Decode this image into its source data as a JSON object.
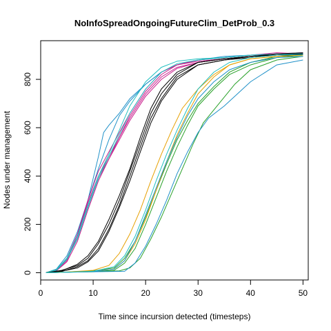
{
  "chart_data": {
    "type": "line",
    "title": "NoInfoSpreadOngoingFutureClim_DetProb_0.3",
    "xlabel": "Time since incursion detected (timesteps)",
    "ylabel": "Nodes under management",
    "xlim": [
      0,
      51
    ],
    "ylim": [
      -30,
      960
    ],
    "xticks": [
      0,
      10,
      20,
      30,
      40,
      50
    ],
    "yticks": [
      0,
      200,
      400,
      600,
      800
    ],
    "grid": false,
    "legend": "none",
    "series": [
      {
        "color": "#1E90C8",
        "x": [
          1,
          3,
          5,
          7,
          9,
          11,
          12,
          13,
          15,
          17,
          20,
          23,
          26,
          30,
          35,
          40,
          45,
          50
        ],
        "y": [
          0,
          10,
          60,
          150,
          300,
          480,
          580,
          610,
          660,
          720,
          780,
          830,
          860,
          880,
          895,
          900,
          905,
          910
        ]
      },
      {
        "color": "#1E90C8",
        "x": [
          1,
          3,
          5,
          7,
          9,
          11,
          13,
          15,
          17,
          20,
          23,
          26,
          30,
          35,
          40,
          45,
          50
        ],
        "y": [
          0,
          15,
          70,
          170,
          300,
          430,
          550,
          650,
          710,
          780,
          830,
          860,
          880,
          890,
          900,
          905,
          905
        ]
      },
      {
        "color": "#C81E8C",
        "x": [
          1,
          3,
          5,
          7,
          9,
          11,
          13,
          15,
          17,
          20,
          23,
          26,
          30,
          35,
          40,
          45,
          50
        ],
        "y": [
          0,
          10,
          50,
          150,
          290,
          400,
          480,
          560,
          640,
          740,
          810,
          850,
          870,
          885,
          895,
          900,
          900
        ]
      },
      {
        "color": "#C81E8C",
        "x": [
          1,
          3,
          5,
          7,
          9,
          11,
          13,
          15,
          17,
          20,
          23,
          26,
          30,
          35,
          40,
          45,
          50
        ],
        "y": [
          0,
          12,
          55,
          140,
          270,
          390,
          470,
          550,
          630,
          730,
          800,
          845,
          870,
          885,
          895,
          905,
          910
        ]
      },
      {
        "color": "#C81E8C",
        "x": [
          1,
          3,
          5,
          7,
          9,
          11,
          13,
          15,
          17,
          20,
          23,
          26,
          30,
          35,
          40,
          45,
          50
        ],
        "y": [
          0,
          8,
          45,
          130,
          260,
          380,
          470,
          560,
          650,
          750,
          820,
          860,
          880,
          890,
          900,
          910,
          905
        ]
      },
      {
        "color": "#C81E8C",
        "x": [
          1,
          3,
          5,
          7,
          9,
          11,
          13,
          15,
          17,
          20,
          23,
          26,
          30,
          35,
          40,
          45,
          50
        ],
        "y": [
          0,
          10,
          60,
          160,
          300,
          420,
          500,
          580,
          660,
          760,
          830,
          860,
          875,
          885,
          895,
          900,
          905
        ]
      },
      {
        "color": "#20C0C0",
        "x": [
          1,
          3,
          5,
          7,
          9,
          11,
          13,
          15,
          17,
          20,
          23,
          26,
          30,
          35,
          40,
          45,
          50
        ],
        "y": [
          0,
          14,
          60,
          150,
          280,
          400,
          490,
          590,
          690,
          790,
          850,
          875,
          885,
          890,
          900,
          905,
          908
        ]
      },
      {
        "color": "#20C0C0",
        "x": [
          1,
          3,
          5,
          7,
          9,
          11,
          13,
          15,
          17,
          20,
          23,
          26,
          30,
          35,
          40,
          45,
          50
        ],
        "y": [
          0,
          10,
          55,
          140,
          270,
          390,
          480,
          570,
          660,
          760,
          830,
          865,
          880,
          890,
          900,
          905,
          900
        ]
      },
      {
        "color": "#000000",
        "x": [
          1,
          4,
          7,
          9,
          11,
          13,
          15,
          17,
          19,
          21,
          23,
          26,
          30,
          35,
          40,
          45,
          50
        ],
        "y": [
          0,
          10,
          30,
          60,
          120,
          200,
          300,
          420,
          540,
          660,
          740,
          820,
          870,
          885,
          895,
          900,
          905
        ]
      },
      {
        "color": "#000000",
        "x": [
          1,
          4,
          7,
          9,
          11,
          13,
          15,
          17,
          19,
          21,
          23,
          26,
          30,
          35,
          40,
          45,
          50
        ],
        "y": [
          0,
          5,
          25,
          50,
          100,
          180,
          280,
          400,
          520,
          640,
          720,
          810,
          860,
          880,
          890,
          900,
          900
        ]
      },
      {
        "color": "#000000",
        "x": [
          1,
          4,
          7,
          9,
          11,
          13,
          15,
          17,
          19,
          21,
          23,
          26,
          30,
          35,
          40,
          45,
          50
        ],
        "y": [
          0,
          8,
          35,
          70,
          130,
          220,
          320,
          430,
          560,
          680,
          760,
          830,
          870,
          885,
          895,
          905,
          910
        ]
      },
      {
        "color": "#000000",
        "x": [
          1,
          4,
          7,
          9,
          11,
          13,
          15,
          17,
          19,
          21,
          23,
          26,
          30,
          35,
          40,
          45,
          50
        ],
        "y": [
          0,
          6,
          20,
          45,
          90,
          170,
          270,
          380,
          500,
          620,
          710,
          800,
          860,
          880,
          895,
          900,
          905
        ]
      },
      {
        "color": "#28A028",
        "x": [
          1,
          5,
          10,
          14,
          16,
          18,
          20,
          22,
          24,
          26,
          28,
          30,
          33,
          36,
          40,
          45,
          50
        ],
        "y": [
          0,
          2,
          5,
          10,
          40,
          100,
          200,
          310,
          420,
          520,
          610,
          690,
          760,
          820,
          860,
          890,
          900
        ]
      },
      {
        "color": "#28A028",
        "x": [
          1,
          5,
          10,
          15,
          17,
          19,
          21,
          23,
          25,
          27,
          29,
          31,
          34,
          37,
          40,
          45,
          50
        ],
        "y": [
          0,
          2,
          4,
          8,
          20,
          60,
          140,
          230,
          330,
          430,
          530,
          620,
          700,
          780,
          840,
          880,
          895
        ]
      },
      {
        "color": "#28A028",
        "x": [
          1,
          5,
          10,
          14,
          16,
          18,
          20,
          22,
          24,
          26,
          28,
          30,
          33,
          36,
          40,
          45,
          50
        ],
        "y": [
          0,
          3,
          8,
          20,
          60,
          130,
          230,
          340,
          450,
          550,
          630,
          700,
          770,
          830,
          870,
          895,
          900
        ]
      },
      {
        "color": "#E6A000",
        "x": [
          1,
          5,
          10,
          13,
          15,
          17,
          19,
          21,
          23,
          25,
          27,
          30,
          33,
          36,
          40,
          45,
          50
        ],
        "y": [
          0,
          3,
          10,
          30,
          80,
          160,
          260,
          380,
          490,
          590,
          680,
          760,
          820,
          860,
          885,
          895,
          900
        ]
      },
      {
        "color": "#E6A000",
        "x": [
          1,
          5,
          10,
          14,
          16,
          18,
          20,
          22,
          24,
          26,
          28,
          30,
          33,
          36,
          40,
          45,
          50
        ],
        "y": [
          0,
          2,
          6,
          15,
          50,
          120,
          220,
          340,
          460,
          570,
          660,
          740,
          810,
          860,
          885,
          895,
          900
        ]
      },
      {
        "color": "#1E90C8",
        "x": [
          1,
          5,
          10,
          16,
          18,
          20,
          22,
          24,
          26,
          28,
          30,
          32,
          35,
          38,
          40,
          45,
          50
        ],
        "y": [
          0,
          2,
          4,
          6,
          40,
          110,
          200,
          300,
          410,
          500,
          580,
          640,
          690,
          750,
          790,
          860,
          880
        ]
      },
      {
        "color": "#1E90C8",
        "x": [
          1,
          5,
          10,
          14,
          16,
          18,
          20,
          22,
          24,
          26,
          28,
          30,
          33,
          36,
          40,
          45,
          50
        ],
        "y": [
          0,
          2,
          5,
          15,
          50,
          130,
          240,
          350,
          460,
          560,
          650,
          720,
          790,
          840,
          870,
          890,
          895
        ]
      },
      {
        "color": "#20C0C0",
        "x": [
          1,
          5,
          10,
          14,
          16,
          18,
          20,
          22,
          24,
          26,
          28,
          30,
          33,
          36,
          40,
          45,
          50
        ],
        "y": [
          0,
          2,
          6,
          25,
          70,
          150,
          260,
          380,
          490,
          590,
          680,
          760,
          830,
          870,
          890,
          900,
          902
        ]
      }
    ]
  }
}
